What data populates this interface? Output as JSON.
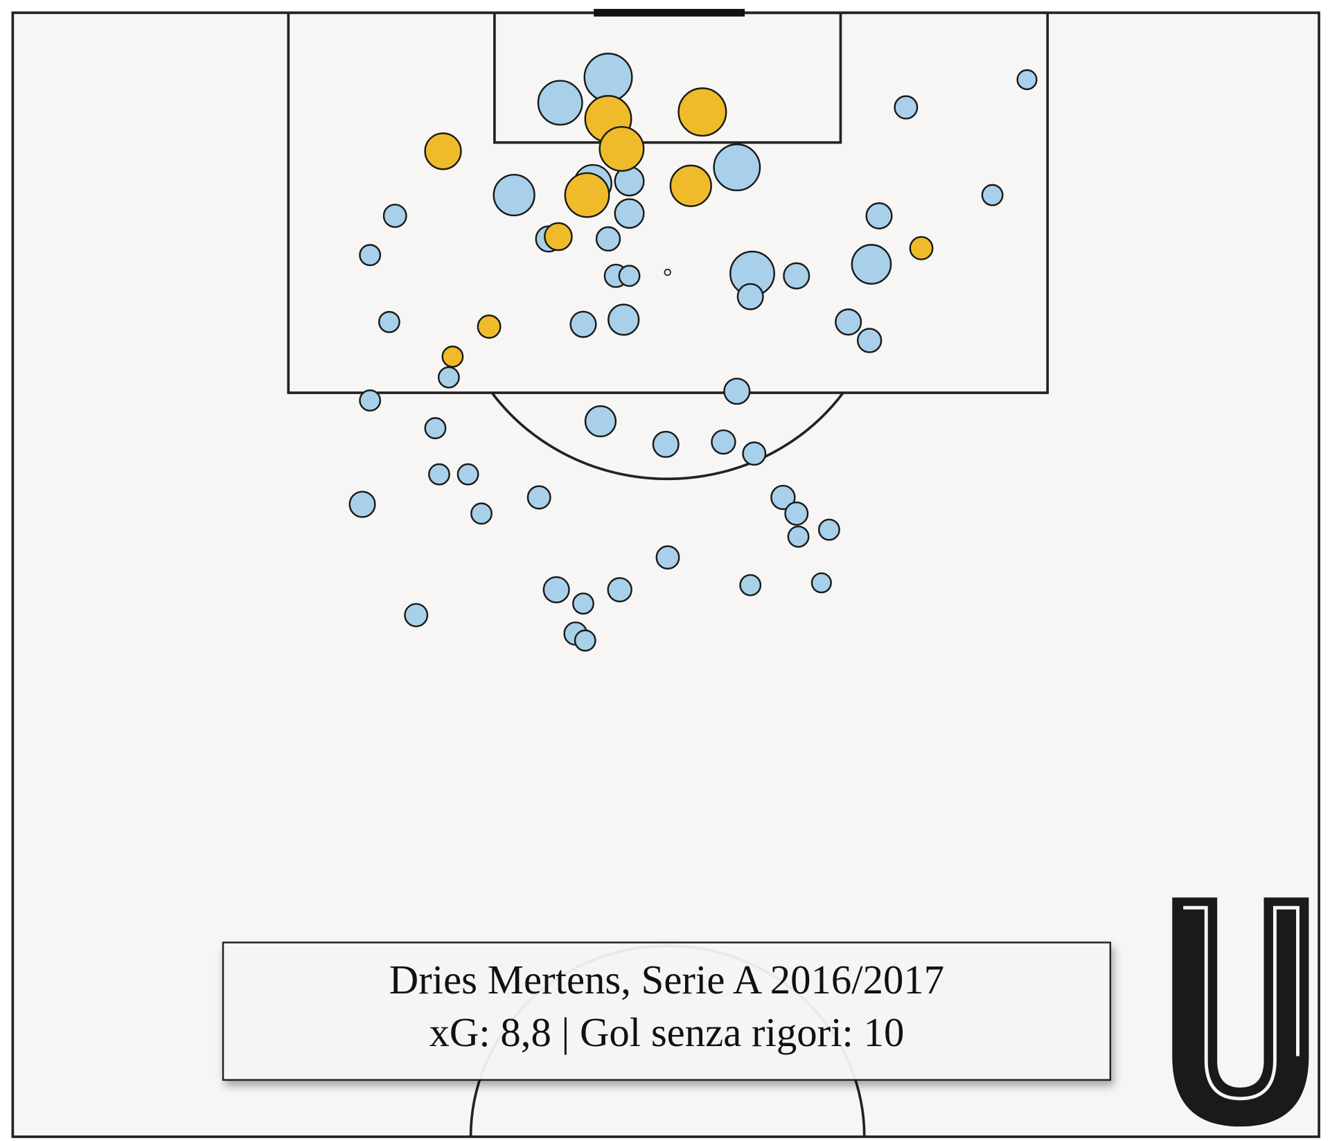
{
  "chart_data": {
    "type": "scatter",
    "title": "Dries Mertens, Serie A 2016/2017",
    "subtitle": "xG: 8,8 | Gol senza rigori: 10",
    "xlim": [
      0,
      68
    ],
    "ylim": [
      0,
      48.7
    ],
    "series": [
      {
        "color": "#a8d0ea",
        "x": [
          31.0,
          28.5,
          30.2,
          32.1,
          26.1,
          37.7,
          32.1,
          27.9,
          31.0,
          46.5,
          52.8,
          51.0,
          45.1,
          44.7,
          38.5,
          38.4,
          40.8,
          31.4,
          32.1,
          19.9,
          18.6,
          19.6,
          29.7,
          31.8,
          43.5,
          44.6,
          22.7,
          18.6,
          37.7,
          30.6,
          22.0,
          34.0,
          37.0,
          38.6,
          22.2,
          23.7,
          18.2,
          24.4,
          27.4,
          40.1,
          40.8,
          40.9,
          42.5,
          34.1,
          28.3,
          29.7,
          31.6,
          38.4,
          42.1,
          21.0,
          29.3,
          29.8
        ],
        "values": [
          2.8,
          3.9,
          7.4,
          7.3,
          7.9,
          6.7,
          8.7,
          9.8,
          9.8,
          4.1,
          2.9,
          7.9,
          8.8,
          10.9,
          11.3,
          12.3,
          11.4,
          11.4,
          11.4,
          8.8,
          10.5,
          13.4,
          13.5,
          13.3,
          13.4,
          14.2,
          15.8,
          16.8,
          16.4,
          17.7,
          18.0,
          18.7,
          18.6,
          19.1,
          20.0,
          20.0,
          21.3,
          21.7,
          21.0,
          21.0,
          21.7,
          22.7,
          22.4,
          23.6,
          25.0,
          25.6,
          25.0,
          24.8,
          24.7,
          26.1,
          26.9,
          27.2
        ],
        "sizes": [
          0.49,
          0.42,
          0.3,
          0.18,
          0.36,
          0.46,
          0.18,
          0.14,
          0.12,
          0.11,
          0.08,
          0.09,
          0.14,
          0.33,
          0.42,
          0.14,
          0.14,
          0.11,
          0.09,
          0.11,
          0.09,
          0.09,
          0.14,
          0.2,
          0.14,
          0.12,
          0.09,
          0.09,
          0.14,
          0.2,
          0.09,
          0.14,
          0.12,
          0.11,
          0.09,
          0.09,
          0.14,
          0.09,
          0.11,
          0.12,
          0.11,
          0.09,
          0.09,
          0.11,
          0.14,
          0.09,
          0.12,
          0.09,
          0.08,
          0.11,
          0.11,
          0.09
        ]
      },
      {
        "color": "#f0bb2a",
        "x": [
          22.4,
          31.0,
          31.7,
          35.9,
          29.9,
          35.3,
          28.4,
          47.3,
          24.8,
          22.9
        ],
        "values": [
          6.0,
          4.6,
          5.9,
          4.3,
          7.9,
          7.5,
          9.7,
          10.2,
          13.6,
          14.9
        ],
        "sizes": [
          0.28,
          0.46,
          0.42,
          0.49,
          0.42,
          0.36,
          0.16,
          0.11,
          0.11,
          0.09
        ]
      }
    ]
  }
}
